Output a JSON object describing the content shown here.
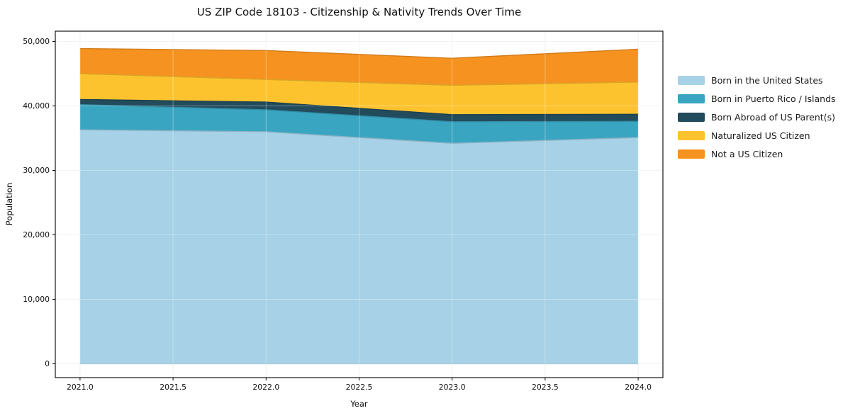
{
  "chart_data": {
    "type": "area",
    "stacked": true,
    "title": "US ZIP Code 18103 - Citizenship & Nativity Trends Over Time",
    "xlabel": "Year",
    "ylabel": "Population",
    "grid": true,
    "legend_position": "right-outside",
    "x": [
      2021,
      2022,
      2023,
      2024
    ],
    "xlim": [
      2020.867,
      2024.133
    ],
    "ylim": [
      -2150,
      51600
    ],
    "x_tick_values": [
      2021.0,
      2021.5,
      2022.0,
      2022.5,
      2023.0,
      2023.5,
      2024.0
    ],
    "x_tick_labels": [
      "2021.0",
      "2021.5",
      "2022.0",
      "2022.5",
      "2023.0",
      "2023.5",
      "2024.0"
    ],
    "y_tick_values": [
      0,
      10000,
      20000,
      30000,
      40000,
      50000
    ],
    "y_tick_labels": [
      "0",
      "10,000",
      "20,000",
      "30,000",
      "40,000",
      "50,000"
    ],
    "series": [
      {
        "name": "Born in the United States",
        "color": "#a6d1e6",
        "values": [
          36300,
          36000,
          34200,
          35100
        ]
      },
      {
        "name": "Born in Puerto Rico / Islands",
        "color": "#3aa5c1",
        "values": [
          3900,
          3400,
          3350,
          2500
        ]
      },
      {
        "name": "Born Abroad of US Parent(s)",
        "color": "#224b5c",
        "values": [
          800,
          1200,
          1100,
          1100
        ]
      },
      {
        "name": "Naturalized US Citizen",
        "color": "#fdc32e",
        "values": [
          4000,
          3500,
          4550,
          5000
        ]
      },
      {
        "name": "Not a US Citizen",
        "color": "#f6921f",
        "values": [
          3900,
          4500,
          4200,
          5100
        ]
      }
    ],
    "stack_totals": [
      48900,
      48600,
      47400,
      48800
    ]
  }
}
